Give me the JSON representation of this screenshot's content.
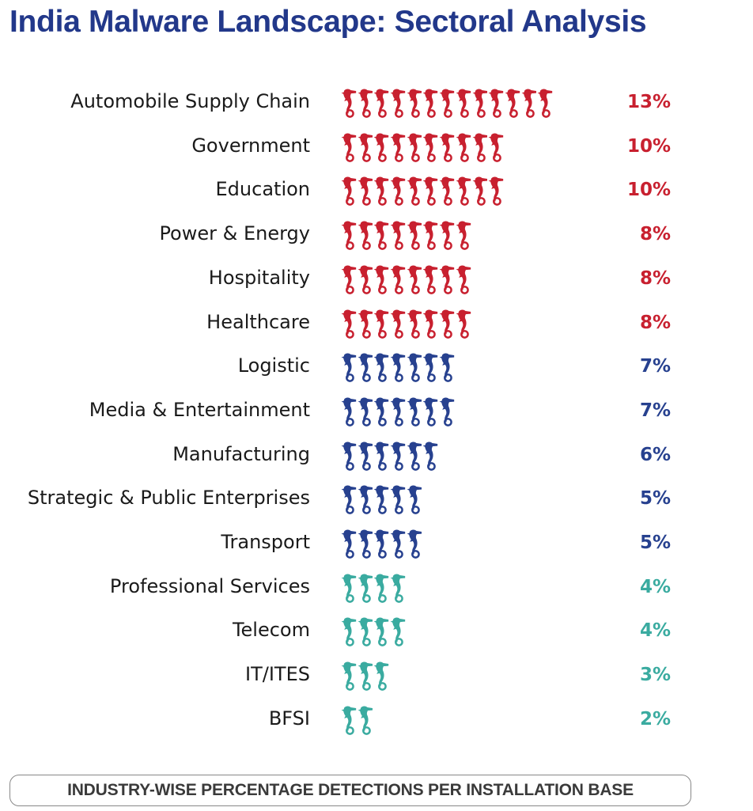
{
  "chart_data": {
    "type": "bar",
    "title": "India Malware Landscape: Sectoral Analysis",
    "caption": "INDUSTRY-WISE PERCENTAGE DETECTIONS PER INSTALLATION BASE",
    "unit": "%",
    "mark": "seahorse-icon (one icon per percent)",
    "categories": [
      "Automobile Supply Chain",
      "Government",
      "Education",
      "Power & Energy",
      "Hospitality",
      "Healthcare",
      "Logistic",
      "Media & Entertainment",
      "Manufacturing",
      "Strategic & Public Enterprises",
      "Transport",
      "Professional Services",
      "Telecom",
      "IT/ITES",
      "BFSI"
    ],
    "values": [
      13,
      10,
      10,
      8,
      8,
      8,
      7,
      7,
      6,
      5,
      5,
      4,
      4,
      3,
      2
    ],
    "labels": [
      "13%",
      "10%",
      "10%",
      "8%",
      "8%",
      "8%",
      "7%",
      "7%",
      "6%",
      "5%",
      "5%",
      "4%",
      "4%",
      "3%",
      "2%"
    ],
    "groups": [
      "high",
      "high",
      "high",
      "high",
      "high",
      "high",
      "mid",
      "mid",
      "mid",
      "mid",
      "mid",
      "low",
      "low",
      "low",
      "low"
    ],
    "colors": {
      "high": "#c8202f",
      "mid": "#27418f",
      "low": "#3aaba0",
      "title": "#22388a"
    }
  }
}
